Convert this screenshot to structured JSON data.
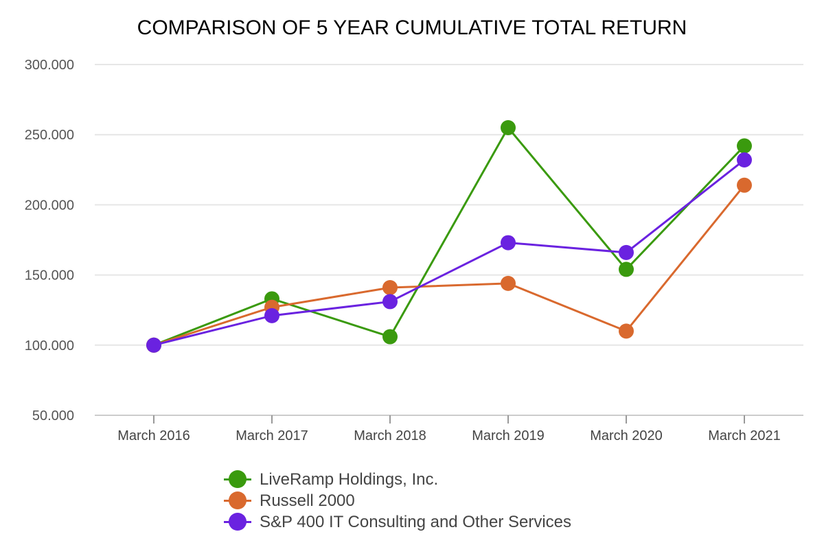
{
  "chart_data": {
    "type": "line",
    "title": "COMPARISON OF 5 YEAR CUMULATIVE TOTAL RETURN",
    "xlabel": "",
    "ylabel": "",
    "categories": [
      "March 2016",
      "March 2017",
      "March 2018",
      "March 2019",
      "March 2020",
      "March 2021"
    ],
    "ylim": [
      50,
      300
    ],
    "yticks": [
      50,
      100,
      150,
      200,
      250,
      300
    ],
    "ytick_labels": [
      "50.000",
      "100.000",
      "150.000",
      "200.000",
      "250.000",
      "300.000"
    ],
    "grid": true,
    "legend_position": "bottom",
    "series": [
      {
        "name": "LiveRamp Holdings, Inc.",
        "color": "#3a9a0e",
        "values": [
          100,
          133,
          106,
          255,
          154,
          242
        ]
      },
      {
        "name": "Russell 2000",
        "color": "#d9692e",
        "values": [
          100,
          127,
          141,
          144,
          110,
          214
        ]
      },
      {
        "name": "S&P 400 IT Consulting and Other Services",
        "color": "#6a22e0",
        "values": [
          100,
          121,
          131,
          173,
          166,
          232
        ]
      }
    ]
  }
}
